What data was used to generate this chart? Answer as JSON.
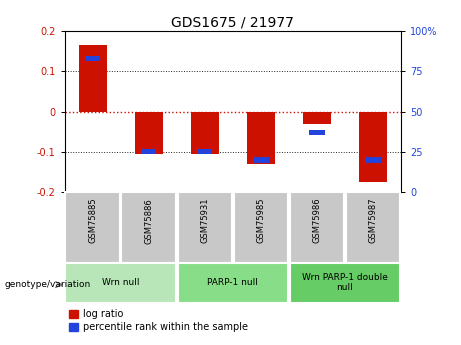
{
  "title": "GDS1675 / 21977",
  "samples": [
    "GSM75885",
    "GSM75886",
    "GSM75931",
    "GSM75985",
    "GSM75986",
    "GSM75987"
  ],
  "log_ratio": [
    0.165,
    -0.105,
    -0.105,
    -0.13,
    -0.03,
    -0.175
  ],
  "percentile_rank": [
    83,
    25,
    25,
    20,
    37,
    20
  ],
  "groups": [
    {
      "label": "Wrn null",
      "start": 0,
      "end": 1,
      "color": "#b8e6b8"
    },
    {
      "label": "PARP-1 null",
      "start": 2,
      "end": 3,
      "color": "#88dd88"
    },
    {
      "label": "Wrn PARP-1 double\nnull",
      "start": 4,
      "end": 5,
      "color": "#66cc66"
    }
  ],
  "ylim_left": [
    -0.2,
    0.2
  ],
  "ylim_right": [
    0,
    100
  ],
  "yticks_left": [
    -0.2,
    -0.1,
    0.0,
    0.1,
    0.2
  ],
  "yticks_right": [
    0,
    25,
    50,
    75,
    100
  ],
  "bar_width": 0.5,
  "red_color": "#cc1100",
  "blue_color": "#2244dd",
  "zero_line_color": "#cc1100",
  "dotted_line_color": "#222222",
  "bar_bg_color": "#c8c8c8",
  "title_fontsize": 10,
  "axis_fontsize": 7,
  "tick_fontsize": 7,
  "legend_fontsize": 7
}
